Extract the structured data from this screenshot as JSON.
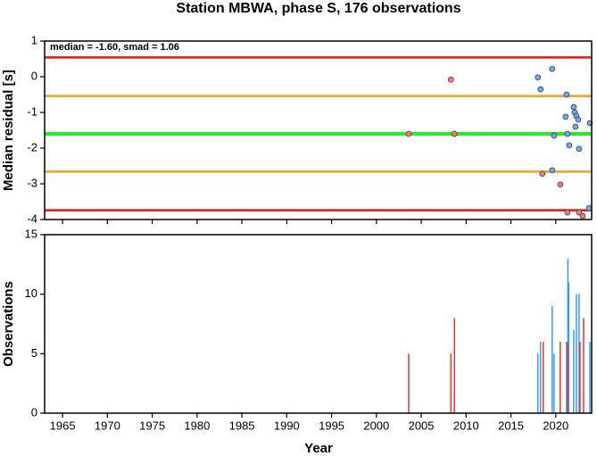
{
  "chart_data": [
    {
      "type": "scatter",
      "title": "Station MBWA, phase S, 176 observations",
      "annotation": "median = -1.60, smad = 1.06",
      "y_label": "Median residual [s]",
      "xlim": [
        1963,
        2024
      ],
      "xticks": [
        1965,
        1970,
        1975,
        1980,
        1985,
        1990,
        1995,
        2000,
        2005,
        2010,
        2015,
        2020
      ],
      "ylim": [
        -4,
        1
      ],
      "yticks": [
        1,
        0,
        -1,
        -2,
        -3,
        -4
      ],
      "reference_lines": [
        {
          "value": 0.54,
          "color": "#ee1111"
        },
        {
          "value": -0.54,
          "color": "#f0a020"
        },
        {
          "value": -1.6,
          "color": "#22ee22"
        },
        {
          "value": -2.66,
          "color": "#f0a020"
        },
        {
          "value": -3.74,
          "color": "#ee1111"
        }
      ],
      "series": [
        {
          "color": "#f47a7a",
          "x": [
            2003.6,
            2008.3,
            2008.7,
            2018.5,
            2020.5,
            2021.3,
            2022.6,
            2023.0
          ],
          "values": [
            -1.6,
            -0.08,
            -1.6,
            -2.72,
            -3.02,
            -3.8,
            -3.8,
            -3.9
          ]
        },
        {
          "color": "#6ea8f2",
          "x": [
            2018.0,
            2018.3,
            2019.6,
            2019.8,
            2019.6,
            2021.2,
            2021.1,
            2021.3,
            2021.5,
            2022.0,
            2022.1,
            2022.3,
            2022.5,
            2022.2,
            2022.6,
            2023.8,
            2023.7
          ],
          "values": [
            -0.02,
            -0.35,
            0.22,
            -1.65,
            -2.62,
            -0.5,
            -1.12,
            -1.6,
            -1.92,
            -0.85,
            -1.0,
            -1.1,
            -1.2,
            -1.4,
            -2.02,
            -1.3,
            -3.68
          ]
        }
      ]
    },
    {
      "type": "bar",
      "x_label": "Year",
      "y_label": "Observations",
      "xlim": [
        1963,
        2024
      ],
      "xticks": [
        1965,
        1970,
        1975,
        1980,
        1985,
        1990,
        1995,
        2000,
        2005,
        2010,
        2015,
        2020
      ],
      "ylim": [
        0,
        15
      ],
      "yticks": [
        0,
        5,
        10,
        15
      ],
      "series": [
        {
          "color": "#3a9af0",
          "x": [
            2018.0,
            2018.3,
            2019.6,
            2019.8,
            2021.2,
            2021.35,
            2021.45,
            2022.0,
            2022.3,
            2022.6,
            2023.8
          ],
          "values": [
            5,
            6,
            9,
            5,
            6,
            13,
            11,
            7,
            10,
            10,
            6
          ]
        },
        {
          "color": "#ee3030",
          "x": [
            2003.6,
            2008.3,
            2008.7,
            2018.6,
            2020.5,
            2021.3,
            2022.7,
            2023.1
          ],
          "values": [
            5,
            5,
            8,
            6,
            6,
            6,
            6,
            8
          ]
        }
      ]
    }
  ]
}
